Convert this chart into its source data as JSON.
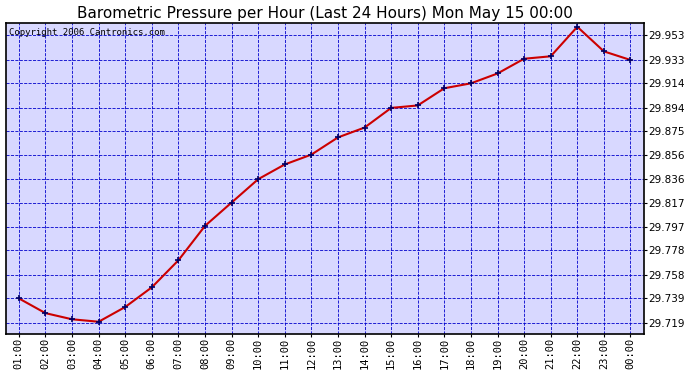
{
  "title": "Barometric Pressure per Hour (Last 24 Hours) Mon May 15 00:00",
  "copyright": "Copyright 2006 Cantronics.com",
  "x_labels": [
    "01:00",
    "02:00",
    "03:00",
    "04:00",
    "05:00",
    "06:00",
    "07:00",
    "08:00",
    "09:00",
    "10:00",
    "11:00",
    "12:00",
    "13:00",
    "14:00",
    "15:00",
    "16:00",
    "17:00",
    "18:00",
    "19:00",
    "20:00",
    "21:00",
    "22:00",
    "23:00",
    "00:00"
  ],
  "y_values": [
    29.739,
    29.727,
    29.722,
    29.72,
    29.732,
    29.748,
    29.77,
    29.798,
    29.817,
    29.836,
    29.848,
    29.856,
    29.87,
    29.878,
    29.894,
    29.896,
    29.91,
    29.914,
    29.922,
    29.934,
    29.936,
    29.96,
    29.94,
    29.933
  ],
  "ylim_min": 29.71,
  "ylim_max": 29.963,
  "yticks": [
    29.719,
    29.739,
    29.758,
    29.778,
    29.797,
    29.817,
    29.836,
    29.856,
    29.875,
    29.894,
    29.914,
    29.933,
    29.953
  ],
  "line_color": "#cc0000",
  "marker_color": "#000066",
  "outer_bg_color": "#ffffff",
  "plot_bg_color": "#d8d8ff",
  "grid_color": "#0000cc",
  "border_color": "#000000",
  "title_fontsize": 11,
  "copyright_fontsize": 6.5,
  "tick_label_fontsize": 7.5
}
